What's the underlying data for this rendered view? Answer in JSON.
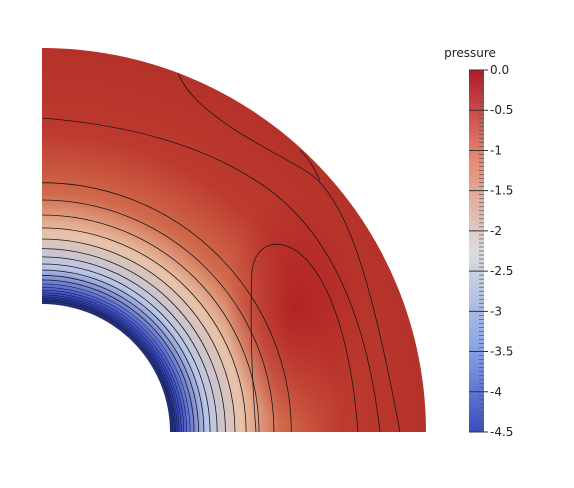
{
  "colorbar": {
    "title": "pressure",
    "ticks": [
      {
        "value": 0.0,
        "label": "0.0"
      },
      {
        "value": -0.5,
        "label": "-0.5"
      },
      {
        "value": -1.0,
        "label": "-1"
      },
      {
        "value": -1.5,
        "label": "-1.5"
      },
      {
        "value": -2.0,
        "label": "-2"
      },
      {
        "value": -2.5,
        "label": "-2.5"
      },
      {
        "value": -3.0,
        "label": "-3"
      },
      {
        "value": -3.5,
        "label": "-3.5"
      },
      {
        "value": -4.0,
        "label": "-4"
      },
      {
        "value": -4.5,
        "label": "-4.5"
      }
    ],
    "range": [
      -4.5,
      0.0
    ],
    "colors": {
      "max": "#b2182b",
      "mid": "#dddddd",
      "min": "#3b4cc0"
    }
  }
}
